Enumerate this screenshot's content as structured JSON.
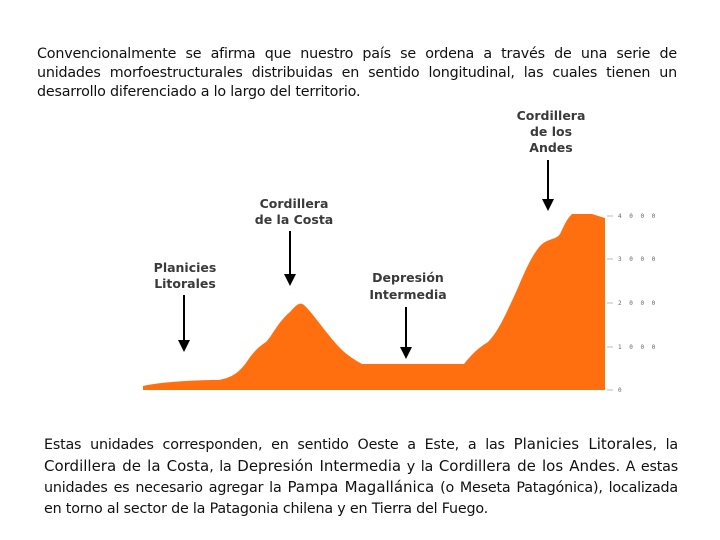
{
  "intro": {
    "text": "Convencionalmente se afirma que nuestro país se ordena a través de una serie de unidades morfoestructurales distribuidas en sentido longitudinal, las cuales tienen un desarrollo diferenciado a lo largo del territorio."
  },
  "figure": {
    "profile_color": "#ff6f0f",
    "arrow_color": "#000000",
    "labels": {
      "planicies": [
        "Planicies",
        "Litorales"
      ],
      "costa": [
        "Cordillera",
        "de la Costa"
      ],
      "depresion": [
        "Depresión",
        "Intermedia"
      ],
      "andes": [
        "Cordillera",
        "de los",
        "Andes"
      ]
    },
    "ticks": [
      "4 0 0 0",
      "3 0 0 0",
      "2 0 0 0",
      "1 0 0 0",
      "0"
    ]
  },
  "closing": {
    "t1": "Estas unidades corresponden, en sentido Oeste a Este, a las ",
    "b1": "Planicies Litorales",
    "t2": ", la ",
    "b2": "Cordillera de la Costa",
    "t3": ", la ",
    "b3": "Depresión Intermedia",
    "t4": " y la ",
    "b4": "Cordillera de los Andes",
    "t5": ". A estas unidades es necesario agregar la ",
    "b5": "Pampa Magallánica",
    "t6": " (o Meseta Patagónica), localizada en torno al sector de la Patagonia chilena y en Tierra del Fuego."
  }
}
